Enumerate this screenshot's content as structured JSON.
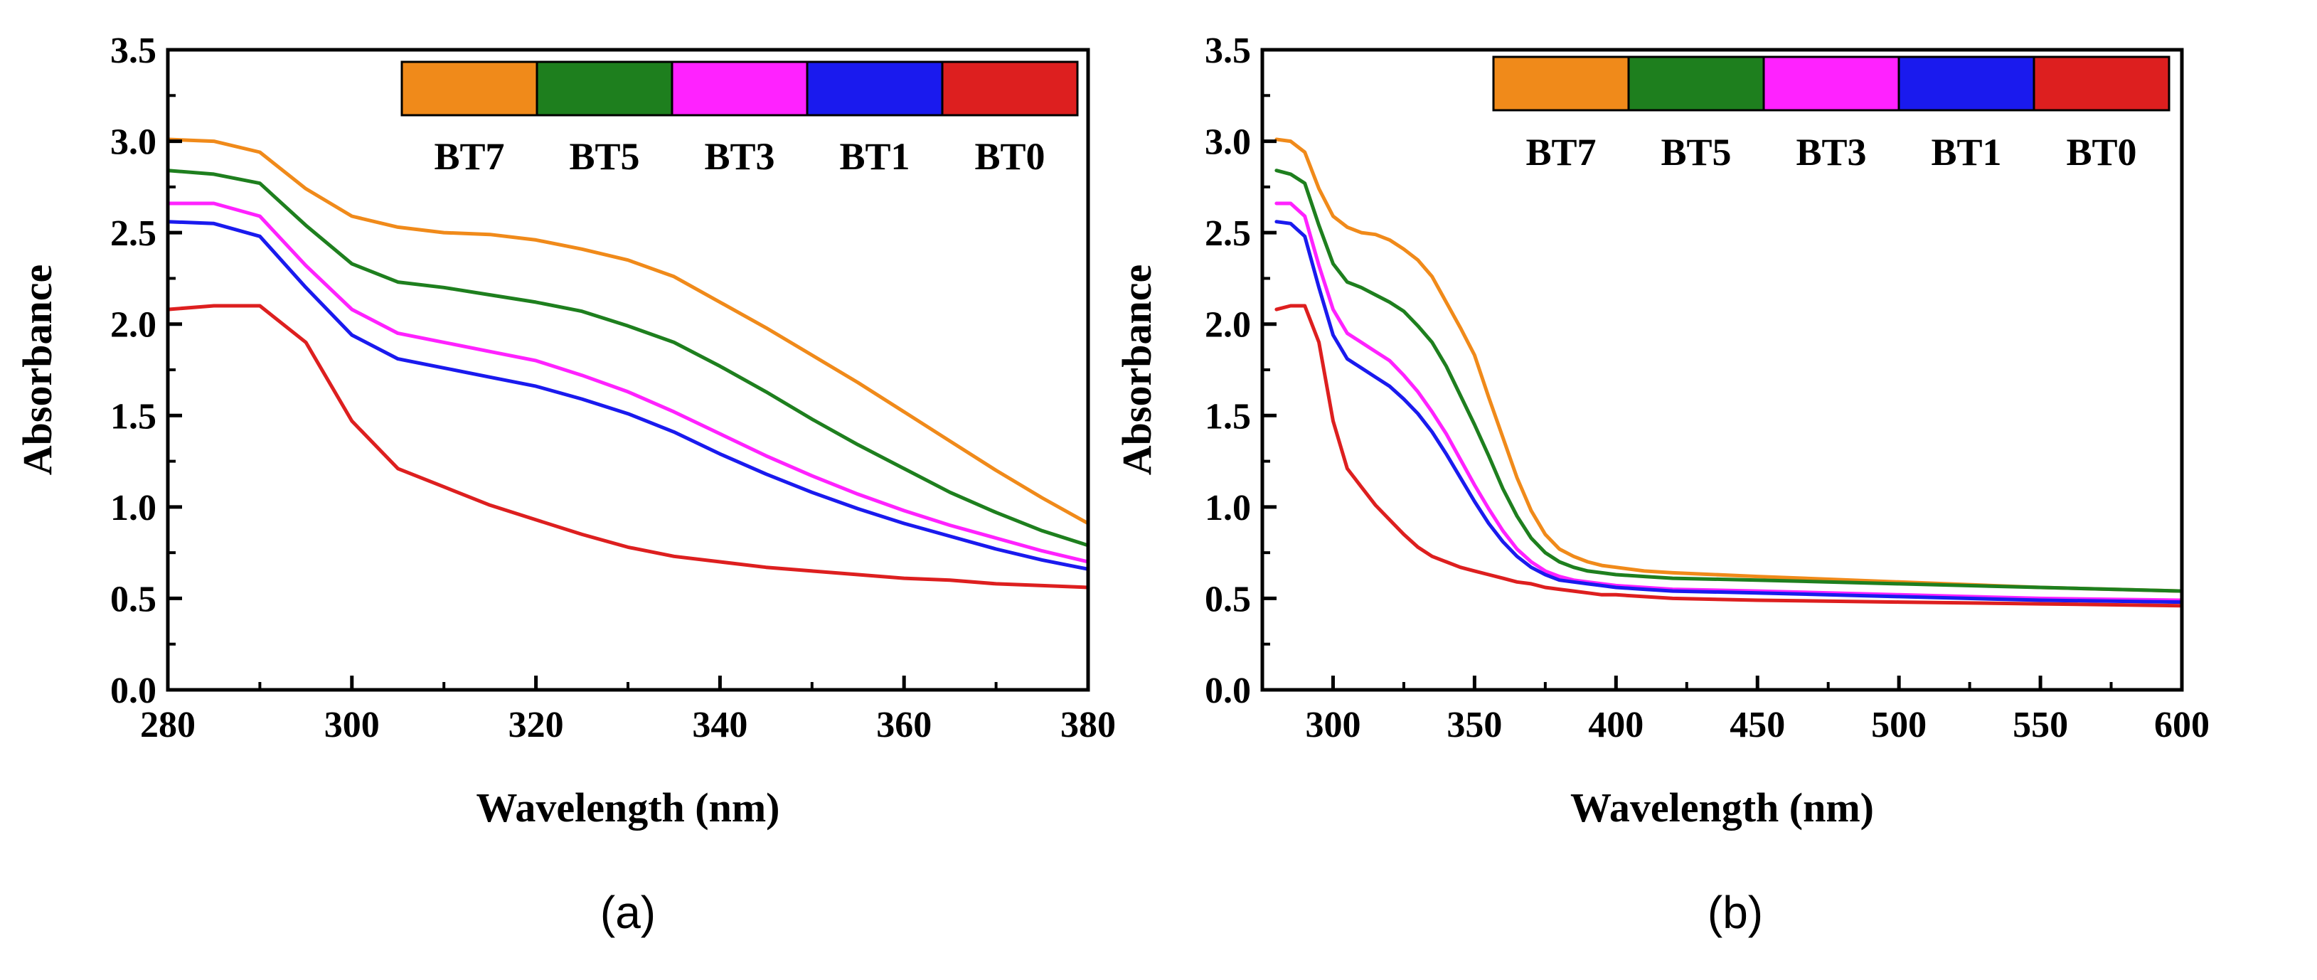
{
  "series_colors": {
    "BT7": "#F08A1A",
    "BT5": "#1E7F1E",
    "BT3": "#FF22FF",
    "BT1": "#1A1AEE",
    "BT0": "#DD1F1F"
  },
  "chart_data": [
    {
      "type": "line",
      "panel_label": "(a)",
      "xlabel": "Wavelength (nm)",
      "ylabel": "Absorbance",
      "xlim": [
        280,
        380
      ],
      "ylim": [
        0,
        3.5
      ],
      "xticks": [
        280,
        300,
        320,
        340,
        360,
        380
      ],
      "yticks": [
        "0.0",
        "0.5",
        "1.0",
        "1.5",
        "2.0",
        "2.5",
        "3.0",
        "3.5"
      ],
      "legend": [
        "BT7",
        "BT5",
        "BT3",
        "BT1",
        "BT0"
      ],
      "legend_position": "top-right",
      "series": [
        {
          "name": "BT7",
          "x": [
            280,
            285,
            290,
            295,
            300,
            305,
            310,
            315,
            320,
            325,
            330,
            335,
            340,
            345,
            350,
            355,
            360,
            365,
            370,
            375,
            380
          ],
          "values": [
            3.01,
            3.0,
            2.94,
            2.74,
            2.59,
            2.53,
            2.5,
            2.49,
            2.46,
            2.41,
            2.35,
            2.26,
            2.12,
            1.98,
            1.83,
            1.68,
            1.52,
            1.36,
            1.2,
            1.05,
            0.91
          ]
        },
        {
          "name": "BT5",
          "x": [
            280,
            285,
            290,
            295,
            300,
            305,
            310,
            315,
            320,
            325,
            330,
            335,
            340,
            345,
            350,
            355,
            360,
            365,
            370,
            375,
            380
          ],
          "values": [
            2.84,
            2.82,
            2.77,
            2.54,
            2.33,
            2.23,
            2.2,
            2.16,
            2.12,
            2.07,
            1.99,
            1.9,
            1.77,
            1.63,
            1.48,
            1.34,
            1.21,
            1.08,
            0.97,
            0.87,
            0.79
          ]
        },
        {
          "name": "BT3",
          "x": [
            280,
            285,
            290,
            295,
            300,
            305,
            310,
            315,
            320,
            325,
            330,
            335,
            340,
            345,
            350,
            355,
            360,
            365,
            370,
            375,
            380
          ],
          "values": [
            2.66,
            2.66,
            2.59,
            2.32,
            2.08,
            1.95,
            1.9,
            1.85,
            1.8,
            1.72,
            1.63,
            1.52,
            1.4,
            1.28,
            1.17,
            1.07,
            0.98,
            0.9,
            0.83,
            0.76,
            0.7
          ]
        },
        {
          "name": "BT1",
          "x": [
            280,
            285,
            290,
            295,
            300,
            305,
            310,
            315,
            320,
            325,
            330,
            335,
            340,
            345,
            350,
            355,
            360,
            365,
            370,
            375,
            380
          ],
          "values": [
            2.56,
            2.55,
            2.48,
            2.2,
            1.94,
            1.81,
            1.76,
            1.71,
            1.66,
            1.59,
            1.51,
            1.41,
            1.29,
            1.18,
            1.08,
            0.99,
            0.91,
            0.84,
            0.77,
            0.71,
            0.66
          ]
        },
        {
          "name": "BT0",
          "x": [
            280,
            285,
            290,
            295,
            300,
            305,
            310,
            315,
            320,
            325,
            330,
            335,
            340,
            345,
            350,
            355,
            360,
            365,
            370,
            375,
            380
          ],
          "values": [
            2.08,
            2.1,
            2.1,
            1.9,
            1.47,
            1.21,
            1.11,
            1.01,
            0.93,
            0.85,
            0.78,
            0.73,
            0.7,
            0.67,
            0.65,
            0.63,
            0.61,
            0.6,
            0.58,
            0.57,
            0.56
          ]
        }
      ]
    },
    {
      "type": "line",
      "panel_label": "(b)",
      "xlabel": "Wavelength (nm)",
      "ylabel": "Absorbance",
      "xlim": [
        275,
        600
      ],
      "ylim": [
        0,
        3.5
      ],
      "xticks": [
        300,
        350,
        400,
        450,
        500,
        550,
        600
      ],
      "yticks": [
        "0.0",
        "0.5",
        "1.0",
        "1.5",
        "2.0",
        "2.5",
        "3.0",
        "3.5"
      ],
      "legend": [
        "BT7",
        "BT5",
        "BT3",
        "BT1",
        "BT0"
      ],
      "legend_position": "top-right",
      "series": [
        {
          "name": "BT7",
          "x": [
            280,
            285,
            290,
            295,
            300,
            305,
            310,
            315,
            320,
            325,
            330,
            335,
            340,
            345,
            350,
            355,
            360,
            365,
            370,
            375,
            380,
            385,
            390,
            395,
            400,
            410,
            420,
            450,
            500,
            550,
            600
          ],
          "values": [
            3.01,
            3.0,
            2.94,
            2.74,
            2.59,
            2.53,
            2.5,
            2.49,
            2.46,
            2.41,
            2.35,
            2.26,
            2.12,
            1.98,
            1.83,
            1.6,
            1.38,
            1.16,
            0.98,
            0.85,
            0.77,
            0.73,
            0.7,
            0.68,
            0.67,
            0.65,
            0.64,
            0.62,
            0.59,
            0.56,
            0.54
          ]
        },
        {
          "name": "BT5",
          "x": [
            280,
            285,
            290,
            295,
            300,
            305,
            310,
            315,
            320,
            325,
            330,
            335,
            340,
            345,
            350,
            355,
            360,
            365,
            370,
            375,
            380,
            385,
            390,
            395,
            400,
            410,
            420,
            450,
            500,
            550,
            600
          ],
          "values": [
            2.84,
            2.82,
            2.77,
            2.54,
            2.33,
            2.23,
            2.2,
            2.16,
            2.12,
            2.07,
            1.99,
            1.9,
            1.77,
            1.61,
            1.45,
            1.28,
            1.1,
            0.95,
            0.83,
            0.75,
            0.7,
            0.67,
            0.65,
            0.64,
            0.63,
            0.62,
            0.61,
            0.6,
            0.58,
            0.56,
            0.54
          ]
        },
        {
          "name": "BT3",
          "x": [
            280,
            285,
            290,
            295,
            300,
            305,
            310,
            315,
            320,
            325,
            330,
            335,
            340,
            345,
            350,
            355,
            360,
            365,
            370,
            375,
            380,
            385,
            390,
            395,
            400,
            410,
            420,
            450,
            500,
            550,
            600
          ],
          "values": [
            2.66,
            2.66,
            2.59,
            2.32,
            2.08,
            1.95,
            1.9,
            1.85,
            1.8,
            1.72,
            1.63,
            1.52,
            1.4,
            1.26,
            1.12,
            0.99,
            0.87,
            0.77,
            0.7,
            0.65,
            0.62,
            0.6,
            0.59,
            0.58,
            0.57,
            0.56,
            0.55,
            0.54,
            0.52,
            0.5,
            0.49
          ]
        },
        {
          "name": "BT1",
          "x": [
            280,
            285,
            290,
            295,
            300,
            305,
            310,
            315,
            320,
            325,
            330,
            335,
            340,
            345,
            350,
            355,
            360,
            365,
            370,
            375,
            380,
            385,
            390,
            395,
            400,
            410,
            420,
            450,
            500,
            550,
            600
          ],
          "values": [
            2.56,
            2.55,
            2.48,
            2.2,
            1.94,
            1.81,
            1.76,
            1.71,
            1.66,
            1.59,
            1.51,
            1.41,
            1.29,
            1.16,
            1.03,
            0.91,
            0.81,
            0.73,
            0.67,
            0.63,
            0.6,
            0.59,
            0.58,
            0.57,
            0.56,
            0.55,
            0.54,
            0.53,
            0.51,
            0.49,
            0.48
          ]
        },
        {
          "name": "BT0",
          "x": [
            280,
            285,
            290,
            295,
            300,
            305,
            310,
            315,
            320,
            325,
            330,
            335,
            340,
            345,
            350,
            355,
            360,
            365,
            370,
            375,
            380,
            385,
            390,
            395,
            400,
            410,
            420,
            450,
            500,
            550,
            600
          ],
          "values": [
            2.08,
            2.1,
            2.1,
            1.9,
            1.47,
            1.21,
            1.11,
            1.01,
            0.93,
            0.85,
            0.78,
            0.73,
            0.7,
            0.67,
            0.65,
            0.63,
            0.61,
            0.59,
            0.58,
            0.56,
            0.55,
            0.54,
            0.53,
            0.52,
            0.52,
            0.51,
            0.5,
            0.49,
            0.48,
            0.47,
            0.46
          ]
        }
      ]
    }
  ]
}
